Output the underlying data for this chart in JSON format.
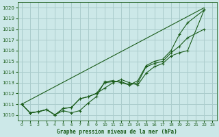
{
  "title": "Graphe pression niveau de la mer (hPa)",
  "background_color": "#cce8e8",
  "grid_color": "#aacccc",
  "line_color": "#1a5c1a",
  "xlim": [
    -0.5,
    23.5
  ],
  "ylim": [
    1009.5,
    1020.5
  ],
  "yticks": [
    1010,
    1011,
    1012,
    1013,
    1014,
    1015,
    1016,
    1017,
    1018,
    1019,
    1020
  ],
  "xticks": [
    0,
    1,
    2,
    3,
    4,
    5,
    6,
    7,
    8,
    9,
    10,
    11,
    12,
    13,
    14,
    15,
    16,
    17,
    18,
    19,
    20,
    21,
    22,
    23
  ],
  "series_with_markers": [
    {
      "x": [
        0,
        1,
        2,
        3,
        4,
        5,
        6,
        7,
        8,
        9,
        10,
        11,
        12,
        13,
        14,
        15,
        16,
        17,
        18,
        19,
        20,
        22
      ],
      "y": [
        1011.0,
        1010.2,
        1010.3,
        1010.5,
        1010.0,
        1010.4,
        1010.2,
        1010.4,
        1011.1,
        1011.7,
        1013.1,
        1013.2,
        1013.0,
        1012.8,
        1013.0,
        1014.5,
        1014.8,
        1015.0,
        1015.8,
        1016.4,
        1017.2,
        1018.0
      ]
    },
    {
      "x": [
        0,
        1,
        2,
        3,
        4,
        5,
        6,
        7,
        8,
        9,
        10,
        11,
        12,
        13,
        14,
        15,
        16,
        17,
        18,
        19,
        20,
        22
      ],
      "y": [
        1011.0,
        1010.2,
        1010.3,
        1010.5,
        1010.0,
        1010.6,
        1010.7,
        1011.5,
        1011.7,
        1012.0,
        1012.5,
        1013.0,
        1013.3,
        1013.0,
        1012.8,
        1013.9,
        1014.5,
        1014.8,
        1015.5,
        1015.8,
        1016.0,
        1019.8
      ]
    },
    {
      "x": [
        0,
        1,
        2,
        3,
        4,
        5,
        6,
        7,
        8,
        9,
        10,
        11,
        12,
        13,
        14,
        15,
        16,
        17,
        18,
        19,
        20,
        22
      ],
      "y": [
        1011.0,
        1010.2,
        1010.3,
        1010.5,
        1010.0,
        1010.6,
        1010.7,
        1011.5,
        1011.7,
        1012.0,
        1013.0,
        1013.1,
        1013.1,
        1012.8,
        1013.2,
        1014.6,
        1015.0,
        1015.2,
        1016.0,
        1017.5,
        1018.6,
        1019.8
      ]
    }
  ],
  "series_straight": [
    {
      "x": [
        0,
        22
      ],
      "y": [
        1011.0,
        1020.0
      ]
    }
  ]
}
